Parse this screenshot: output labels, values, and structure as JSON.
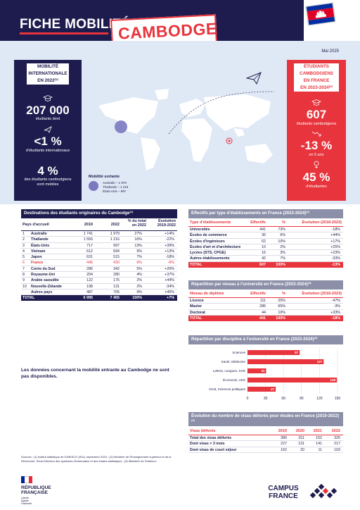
{
  "header": {
    "title": "FICHE MOBILITÉ",
    "country": "CAMBODGE",
    "date": "Mai 2025",
    "colors": {
      "navy": "#1e1c4e",
      "red": "#e8343c",
      "light_blue": "#dfe8f5"
    }
  },
  "left_panel": {
    "heading": [
      "MOBILITÉ",
      "INTERNATIONALE",
      "EN 2022⁽¹⁾"
    ],
    "students_value": "207 000",
    "students_label": "étudiants dont",
    "share_value": "<1 %",
    "share_label": "d'étudiants internationaux",
    "mobile_value": "4 %",
    "mobile_label": "des étudiants cambodgiens sont mobiles",
    "icons": [
      "graduation-cap-icon",
      "airplane-icon"
    ]
  },
  "right_panel": {
    "heading": [
      "ÉTUDIANTS",
      "CAMBODGIENS",
      "EN FRANCE",
      "EN 2023-2024⁽²⁾"
    ],
    "students_value": "607",
    "students_label": "étudiants cambodgiens",
    "trend_value": "-13 %",
    "trend_label": "en 5 ans",
    "women_value": "45 %",
    "women_label": "d'étudiantes",
    "icons": [
      "graduation-cap-icon",
      "trend-down-icon",
      "female-icon"
    ]
  },
  "legend": {
    "title": "Mobilité sortante",
    "lines": [
      "Australie – 1 979",
      "Thaïlande – 1 216",
      "États-Unis – 997"
    ]
  },
  "destinations": {
    "title": "Destinations des étudiants originaires du Cambodge⁽¹⁾",
    "headers": [
      "Pays d'accueil",
      "2019",
      "2022",
      "% du total en 2022",
      "Évolution 2019-2022"
    ],
    "rows": [
      {
        "rank": "1",
        "country": "Australie",
        "y2019": "1 741",
        "y2022": "1 979",
        "share": "27%",
        "evol": "+14%"
      },
      {
        "rank": "2",
        "country": "Thaïlande",
        "y2019": "1 550",
        "y2022": "1 216",
        "share": "16%",
        "evol": "-22%"
      },
      {
        "rank": "3",
        "country": "États-Unis",
        "y2019": "717",
        "y2022": "997",
        "share": "13%",
        "evol": "+39%"
      },
      {
        "rank": "4",
        "country": "Vietnam",
        "y2019": "612",
        "y2022": "694",
        "share": "9%",
        "evol": "+13%"
      },
      {
        "rank": "5",
        "country": "Japon",
        "y2019": "631",
        "y2022": "515",
        "share": "7%",
        "evol": "-18%"
      },
      {
        "rank": "6",
        "country": "France",
        "y2019": "446",
        "y2022": "420",
        "share": "6%",
        "evol": "-6%"
      },
      {
        "rank": "7",
        "country": "Corée du Sud",
        "y2019": "286",
        "y2022": "342",
        "share": "5%",
        "evol": "+20%"
      },
      {
        "rank": "8",
        "country": "Royaume-Uni",
        "y2019": "204",
        "y2022": "280",
        "share": "4%",
        "evol": "+37%"
      },
      {
        "rank": "9",
        "country": "Arabie saoudite",
        "y2019": "122",
        "y2022": "176",
        "share": "2%",
        "evol": "+44%"
      },
      {
        "rank": "10",
        "country": "Nouvelle-Zélande",
        "y2019": "198",
        "y2022": "131",
        "share": "2%",
        "evol": "-34%"
      },
      {
        "rank": "",
        "country": "Autres pays",
        "y2019": "487",
        "y2022": "705",
        "share": "9%",
        "evol": "+45%"
      }
    ],
    "total": {
      "label": "TOTAL",
      "y2019": "6 995",
      "y2022": "7 455",
      "share": "100%",
      "evol": "+7%"
    }
  },
  "etablissements": {
    "title": "Effectifs par type d'établissements en France (2023-2024)⁽²⁾",
    "headers": [
      "Type d'établissements",
      "Effectifs",
      "%",
      "Évolution (2018-2023)"
    ],
    "rows": [
      {
        "label": "Universités",
        "n": "441",
        "pct": "73%",
        "evol": "-18%"
      },
      {
        "label": "Écoles de commerce",
        "n": "36",
        "pct": "6%",
        "evol": "+44%"
      },
      {
        "label": "Écoles d'ingénieurs",
        "n": "62",
        "pct": "10%",
        "evol": "+17%"
      },
      {
        "label": "Écoles d'art et d'architecture",
        "n": "10",
        "pct": "2%",
        "evol": "+25%"
      },
      {
        "label": "Lycées (STS, CPGE)",
        "n": "16",
        "pct": "3%",
        "evol": "+23%"
      },
      {
        "label": "Autres établissements",
        "n": "42",
        "pct": "7%",
        "evol": "-33%"
      }
    ],
    "total": {
      "label": "TOTAL",
      "n": "607",
      "pct": "100%",
      "evol": "-13%"
    }
  },
  "niveau": {
    "title": "Répartition par niveau à l'université en France (2023-2024)⁽²⁾",
    "headers": [
      "Niveau de diplôme",
      "Effectifs",
      "%",
      "Évolution (2018-2023)"
    ],
    "rows": [
      {
        "label": "Licence",
        "n": "111",
        "pct": "25%",
        "evol": "-47%"
      },
      {
        "label": "Master",
        "n": "286",
        "pct": "65%",
        "evol": "-3%"
      },
      {
        "label": "Doctorat",
        "n": "44",
        "pct": "10%",
        "evol": "+33%"
      }
    ],
    "total": {
      "label": "TOTAL",
      "n": "441",
      "pct": "100%",
      "evol": "-18%"
    }
  },
  "chart_data": {
    "type": "bar",
    "orientation": "horizontal",
    "title": "Répartition par discipline à l'université en France (2023-2024)⁽²⁾",
    "categories": [
      "Sciences",
      "Santé, Médecine",
      "Lettres, Langues, SHS",
      "Économie, AES",
      "Droit, Sciences politiques"
    ],
    "values": [
      87,
      127,
      31,
      149,
      47
    ],
    "xlim": [
      0,
      150
    ],
    "xticks": [
      "0",
      "30",
      "60",
      "90",
      "120",
      "150"
    ],
    "grid": true,
    "bar_color": "#e8343c"
  },
  "no_data": "Les données concernant la mobilité entrante au Cambodge ne sont pas disponibles.",
  "visas": {
    "title": "Évolution du nombre de visas délivrés pour études en France (2019-2022)⁽³⁾",
    "headers": [
      "Visas délivrés",
      "2019",
      "2020",
      "2021",
      "2022"
    ],
    "rows": [
      {
        "label": "Total des visas délivrés",
        "v": [
          "389",
          "151",
          "152",
          "320"
        ]
      },
      {
        "label": "Dont visas > 3 mois",
        "v": [
          "227",
          "131",
          "141",
          "217"
        ]
      },
      {
        "label": "Dont visas de court séjour",
        "v": [
          "162",
          "20",
          "11",
          "103"
        ]
      }
    ]
  },
  "sources": "Sources : (1) Institut statistique de l'UNESCO (ISU), septembre 2024 ; (2) Ministère de l'Enseignement supérieur et de la Recherche, Sous-Direction des systèmes d'information et des études statistiques ; (3) Ministère de l'Intérieur.",
  "footer": {
    "rf_name_1": "RÉPUBLIQUE",
    "rf_name_2": "FRANÇAISE",
    "rf_motto": [
      "Liberté",
      "Égalité",
      "Fraternité"
    ],
    "cf_1": "CAMPUS",
    "cf_2": "FRANCE"
  }
}
